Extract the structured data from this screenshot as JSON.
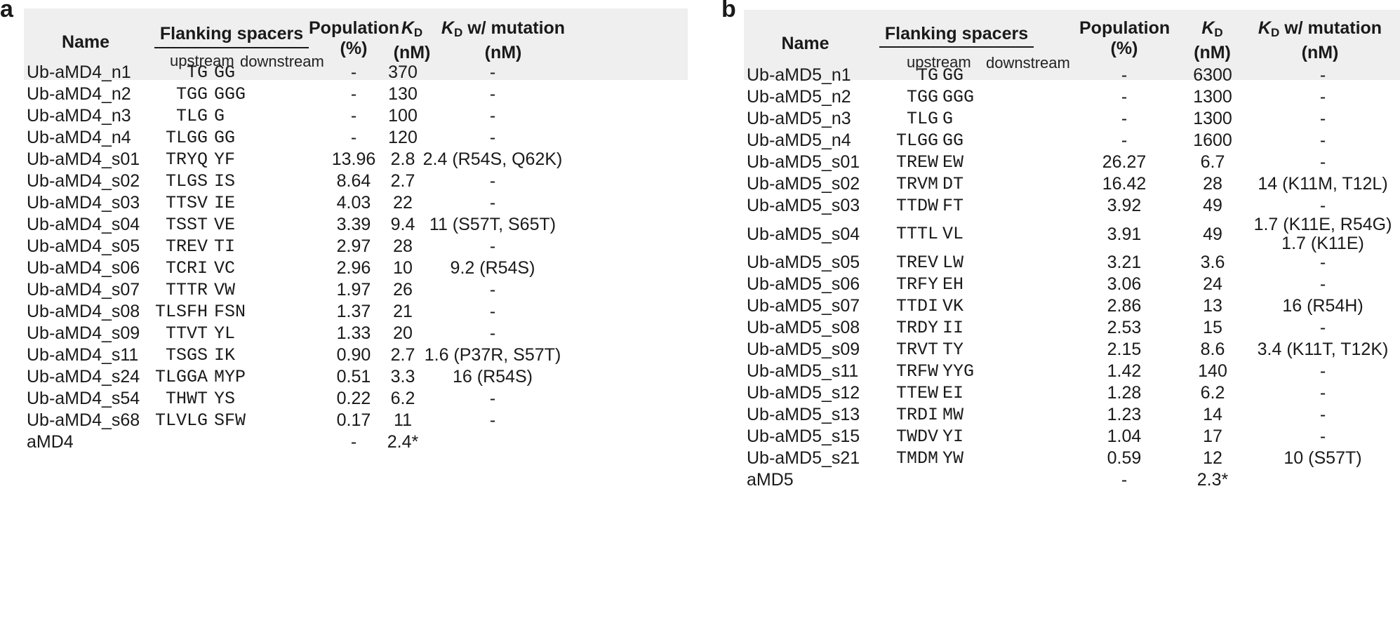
{
  "panels": [
    {
      "label": "a",
      "headers": {
        "name": "Name",
        "flanking": "Flanking spacers",
        "upstream": "upstream",
        "downstream": "downstream",
        "population_line1": "Population",
        "population_line2": "(%)",
        "kd_k": "K",
        "kd_sub": "D",
        "kd_unit": "(nM)",
        "mut_k": "K",
        "mut_sub": "D",
        "mut_rest": " w/ mutation",
        "mut_unit": "(nM)"
      },
      "rows": [
        {
          "name": "Ub-aMD4_n1",
          "up": "TG",
          "down": "GG",
          "pop": "-",
          "kd": "370",
          "mut": "-"
        },
        {
          "name": "Ub-aMD4_n2",
          "up": "TGG",
          "down": "GGG",
          "pop": "-",
          "kd": "130",
          "mut": "-"
        },
        {
          "name": "Ub-aMD4_n3",
          "up": "TLG",
          "down": "G",
          "pop": "-",
          "kd": "100",
          "mut": "-"
        },
        {
          "name": "Ub-aMD4_n4",
          "up": "TLGG",
          "down": "GG",
          "pop": "-",
          "kd": "120",
          "mut": "-"
        },
        {
          "name": "Ub-aMD4_s01",
          "up": "TRYQ",
          "down": "YF",
          "pop": "13.96",
          "kd": "2.8",
          "mut": "2.4 (R54S, Q62K)"
        },
        {
          "name": "Ub-aMD4_s02",
          "up": "TLGS",
          "down": "IS",
          "pop": "8.64",
          "kd": "2.7",
          "mut": "-"
        },
        {
          "name": "Ub-aMD4_s03",
          "up": "TTSV",
          "down": "IE",
          "pop": "4.03",
          "kd": "22",
          "mut": "-"
        },
        {
          "name": "Ub-aMD4_s04",
          "up": "TSST",
          "down": "VE",
          "pop": "3.39",
          "kd": "9.4",
          "mut": "11 (S57T, S65T)"
        },
        {
          "name": "Ub-aMD4_s05",
          "up": "TREV",
          "down": "TI",
          "pop": "2.97",
          "kd": "28",
          "mut": "-"
        },
        {
          "name": "Ub-aMD4_s06",
          "up": "TCRI",
          "down": "VC",
          "pop": "2.96",
          "kd": "10",
          "mut": "9.2 (R54S)"
        },
        {
          "name": "Ub-aMD4_s07",
          "up": "TTTR",
          "down": "VW",
          "pop": "1.97",
          "kd": "26",
          "mut": "-"
        },
        {
          "name": "Ub-aMD4_s08",
          "up": "TLSFH",
          "down": "FSN",
          "pop": "1.37",
          "kd": "21",
          "mut": "-"
        },
        {
          "name": "Ub-aMD4_s09",
          "up": "TTVT",
          "down": "YL",
          "pop": "1.33",
          "kd": "20",
          "mut": "-"
        },
        {
          "name": "Ub-aMD4_s11",
          "up": "TSGS",
          "down": "IK",
          "pop": "0.90",
          "kd": "2.7",
          "mut": "1.6 (P37R, S57T)"
        },
        {
          "name": "Ub-aMD4_s24",
          "up": "TLGGA",
          "down": "MYP",
          "pop": "0.51",
          "kd": "3.3",
          "mut": "16  (R54S)"
        },
        {
          "name": "Ub-aMD4_s54",
          "up": "THWT",
          "down": "YS",
          "pop": "0.22",
          "kd": "6.2",
          "mut": "-"
        },
        {
          "name": "Ub-aMD4_s68",
          "up": "TLVLG",
          "down": "SFW",
          "pop": "0.17",
          "kd": "11",
          "mut": "-"
        },
        {
          "name": "aMD4",
          "up": "",
          "down": "",
          "pop": "-",
          "kd": "2.4*",
          "mut": ""
        }
      ]
    },
    {
      "label": "b",
      "headers": {
        "name": "Name",
        "flanking": "Flanking spacers",
        "upstream": "upstream",
        "downstream": "downstream",
        "population_line1": "Population",
        "population_line2": "(%)",
        "kd_k": "K",
        "kd_sub": "D",
        "kd_unit": "(nM)",
        "mut_k": "K",
        "mut_sub": "D",
        "mut_rest": " w/ mutation",
        "mut_unit": "(nM)"
      },
      "rows": [
        {
          "name": "Ub-aMD5_n1",
          "up": "TG",
          "down": "GG",
          "pop": "-",
          "kd": "6300",
          "mut": "-"
        },
        {
          "name": "Ub-aMD5_n2",
          "up": "TGG",
          "down": "GGG",
          "pop": "-",
          "kd": "1300",
          "mut": "-"
        },
        {
          "name": "Ub-aMD5_n3",
          "up": "TLG",
          "down": "G",
          "pop": "-",
          "kd": "1300",
          "mut": "-"
        },
        {
          "name": "Ub-aMD5_n4",
          "up": "TLGG",
          "down": "GG",
          "pop": "-",
          "kd": "1600",
          "mut": "-"
        },
        {
          "name": "Ub-aMD5_s01",
          "up": "TREW",
          "down": "EW",
          "pop": "26.27",
          "kd": "6.7",
          "mut": "-"
        },
        {
          "name": "Ub-aMD5_s02",
          "up": "TRVM",
          "down": "DT",
          "pop": "16.42",
          "kd": "28",
          "mut": "14 (K11M, T12L)"
        },
        {
          "name": "Ub-aMD5_s03",
          "up": "TTDW",
          "down": "FT",
          "pop": "3.92",
          "kd": "49",
          "mut": "-"
        },
        {
          "name": "Ub-aMD5_s04",
          "up": "TTTL",
          "down": "VL",
          "pop": "3.91",
          "kd": "49",
          "mut": "1.7 (K11E, R54G)",
          "mut2": "1.7 (K11E)"
        },
        {
          "name": "Ub-aMD5_s05",
          "up": "TREV",
          "down": "LW",
          "pop": "3.21",
          "kd": "3.6",
          "mut": "-"
        },
        {
          "name": "Ub-aMD5_s06",
          "up": "TRFY",
          "down": "EH",
          "pop": "3.06",
          "kd": "24",
          "mut": "-"
        },
        {
          "name": "Ub-aMD5_s07",
          "up": "TTDI",
          "down": "VK",
          "pop": "2.86",
          "kd": "13",
          "mut": "16  (R54H)"
        },
        {
          "name": "Ub-aMD5_s08",
          "up": "TRDY",
          "down": "II",
          "pop": "2.53",
          "kd": "15",
          "mut": "-"
        },
        {
          "name": "Ub-aMD5_s09",
          "up": "TRVT",
          "down": "TY",
          "pop": "2.15",
          "kd": "8.6",
          "mut": "3.4 (K11T, T12K)"
        },
        {
          "name": "Ub-aMD5_s11",
          "up": "TRFW",
          "down": "YYG",
          "pop": "1.42",
          "kd": "140",
          "mut": "-"
        },
        {
          "name": "Ub-aMD5_s12",
          "up": "TTEW",
          "down": "EI",
          "pop": "1.28",
          "kd": "6.2",
          "mut": "-"
        },
        {
          "name": "Ub-aMD5_s13",
          "up": "TRDI",
          "down": "MW",
          "pop": "1.23",
          "kd": "14",
          "mut": "-"
        },
        {
          "name": "Ub-aMD5_s15",
          "up": "TWDV",
          "down": "YI",
          "pop": "1.04",
          "kd": "17",
          "mut": "-"
        },
        {
          "name": "Ub-aMD5_s21",
          "up": "TMDM",
          "down": "YW",
          "pop": "0.59",
          "kd": "12",
          "mut": "10  (S57T)"
        },
        {
          "name": "aMD5",
          "up": "",
          "down": "",
          "pop": "-",
          "kd": "2.3*",
          "mut": ""
        }
      ]
    }
  ]
}
